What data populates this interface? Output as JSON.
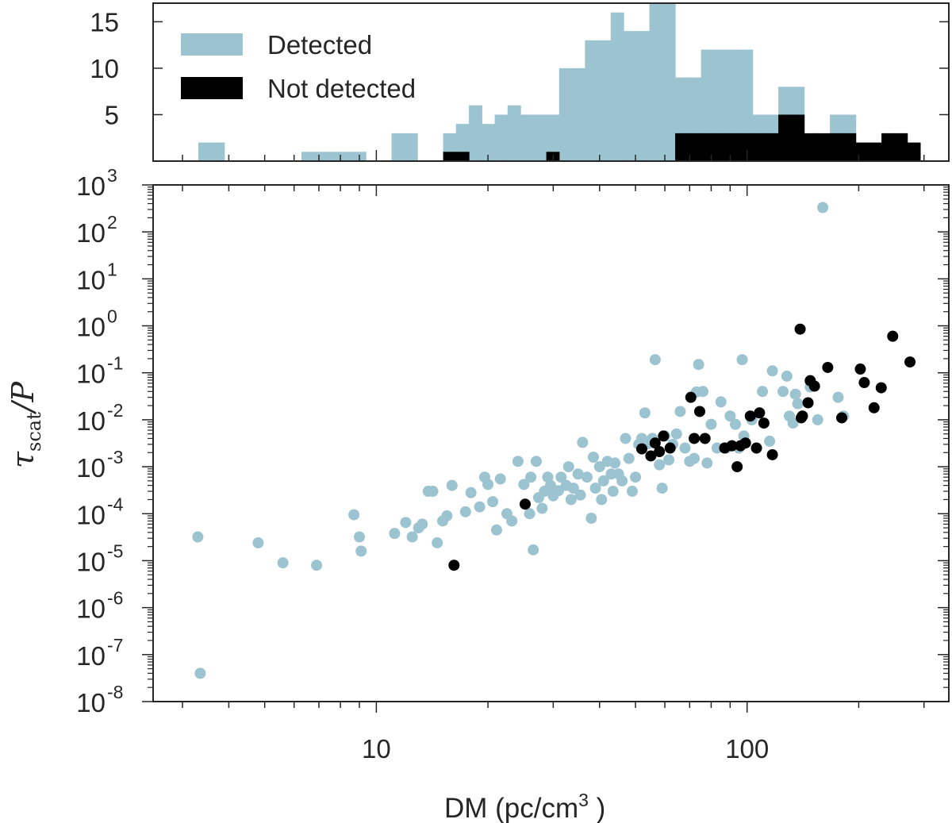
{
  "chart_data": {
    "type": "scatter",
    "colors": {
      "detected": "#9cc3d0",
      "not_detected": "#000000",
      "axis": "#262626"
    },
    "histogram": {
      "type": "bar",
      "ylim": [
        0,
        17
      ],
      "yticks": [
        5,
        10,
        15
      ],
      "ytick_labels": [
        "5",
        "10",
        "15"
      ],
      "legend": {
        "placement": "top-left",
        "entries": [
          {
            "series": "detected",
            "label": "Detected"
          },
          {
            "series": "not_detected",
            "label": "Not detected"
          }
        ]
      },
      "bin_edges": [
        3.06,
        3.31,
        3.59,
        3.89,
        4.21,
        4.56,
        4.94,
        5.35,
        5.8,
        6.28,
        6.8,
        7.37,
        7.98,
        8.65,
        9.37,
        10.15,
        10.99,
        11.91,
        12.9,
        13.98,
        15.14,
        16.4,
        17.77,
        19.25,
        20.86,
        22.59,
        24.48,
        26.52,
        28.73,
        31.12,
        33.72,
        36.53,
        39.57,
        42.87,
        46.45,
        50.32,
        54.51,
        59.06,
        63.98,
        69.32,
        75.1,
        81.36,
        88.14,
        95.49,
        103.45,
        112.07,
        121.42,
        131.54,
        142.5,
        154.38,
        167.25,
        181.19,
        196.3,
        212.66,
        230.39,
        249.6,
        270.4,
        292.95
      ],
      "series": [
        {
          "name": "detected",
          "label": "Detected",
          "counts": [
            0,
            2,
            2,
            0,
            0,
            0,
            0,
            0,
            0,
            1,
            1,
            1,
            1,
            1,
            0,
            0,
            3,
            3,
            0,
            0,
            3,
            4,
            6,
            4,
            5,
            6,
            5,
            5,
            5,
            10,
            10,
            13,
            13,
            16,
            14,
            14,
            17,
            17,
            9,
            9,
            12,
            12,
            12,
            12,
            5,
            5,
            8,
            8,
            0,
            0,
            5,
            5,
            0,
            0,
            3,
            3,
            0
          ]
        },
        {
          "name": "not_detected",
          "label": "Not detected",
          "counts": [
            0,
            0,
            0,
            0,
            0,
            0,
            0,
            0,
            0,
            0,
            0,
            0,
            0,
            0,
            0,
            0,
            0,
            0,
            0,
            0,
            1,
            1,
            0,
            0,
            0,
            0,
            0,
            0,
            1,
            0,
            0,
            0,
            0,
            0,
            0,
            0,
            0,
            0,
            3,
            3,
            3,
            3,
            3,
            3,
            3,
            3,
            5,
            5,
            3,
            3,
            3,
            3,
            2,
            2,
            3,
            3,
            2
          ]
        }
      ]
    },
    "scatter": {
      "type": "scatter",
      "xlabel": "DM (pc/cm",
      "xlabel_sup": "3",
      "xlabel_close": " )",
      "ylabel": "τ",
      "ylabel_sub": "scat",
      "ylabel_rest": "/P",
      "xscale": "log",
      "yscale": "log",
      "xlim": [
        2.5,
        350
      ],
      "ylim": [
        1e-08,
        1000.0
      ],
      "xticks": [
        10,
        100
      ],
      "xtick_labels": [
        "10",
        "100"
      ],
      "yticks_exp": [
        3,
        2,
        1,
        0,
        -1,
        -2,
        -3,
        -4,
        -5,
        -6,
        -7,
        -8
      ],
      "ytick_base": "10",
      "series": [
        {
          "name": "detected",
          "label": "Detected",
          "points": [
            [
              3.3,
              3.2e-05
            ],
            [
              3.35,
              4e-08
            ],
            [
              4.8,
              2.4e-05
            ],
            [
              5.6,
              9e-06
            ],
            [
              6.9,
              8e-06
            ],
            [
              8.7,
              9.5e-05
            ],
            [
              9.0,
              3.2e-05
            ],
            [
              9.1,
              1.6e-05
            ],
            [
              11.2,
              3.8e-05
            ],
            [
              12.0,
              6.5e-05
            ],
            [
              12.5,
              3.2e-05
            ],
            [
              13.0,
              5e-05
            ],
            [
              13.3,
              6e-05
            ],
            [
              13.8,
              0.0003
            ],
            [
              14.2,
              0.0003
            ],
            [
              14.6,
              2.4e-05
            ],
            [
              15.1,
              7e-05
            ],
            [
              15.5,
              9e-05
            ],
            [
              16.0,
              0.0004
            ],
            [
              17.4,
              0.00011
            ],
            [
              18.0,
              0.00028
            ],
            [
              19.0,
              0.00014
            ],
            [
              19.6,
              0.0006
            ],
            [
              20.0,
              0.00042
            ],
            [
              20.6,
              0.00018
            ],
            [
              21.1,
              4.5e-05
            ],
            [
              21.6,
              0.00055
            ],
            [
              22.5,
              0.0001
            ],
            [
              23.2,
              7e-05
            ],
            [
              24.1,
              0.0013
            ],
            [
              25.0,
              0.00042
            ],
            [
              25.9,
              0.0001
            ],
            [
              26.1,
              0.0006
            ],
            [
              26.5,
              1.7e-05
            ],
            [
              27.0,
              0.0013
            ],
            [
              27.4,
              0.00022
            ],
            [
              28.0,
              0.00013
            ],
            [
              28.4,
              0.0003
            ],
            [
              29.0,
              0.0006
            ],
            [
              29.5,
              0.0004
            ],
            [
              30.0,
              0.00024
            ],
            [
              31.0,
              0.00031
            ],
            [
              31.5,
              0.0006
            ],
            [
              32.5,
              0.0004
            ],
            [
              33.0,
              0.001
            ],
            [
              33.5,
              0.0002
            ],
            [
              34.0,
              0.00035
            ],
            [
              35.0,
              0.0007
            ],
            [
              35.5,
              0.00025
            ],
            [
              36.0,
              0.0033
            ],
            [
              37.0,
              0.0006
            ],
            [
              38.0,
              8e-05
            ],
            [
              38.5,
              0.0016
            ],
            [
              39.0,
              0.00035
            ],
            [
              40.0,
              0.001
            ],
            [
              40.5,
              0.0002
            ],
            [
              41.0,
              0.0005
            ],
            [
              42.0,
              0.0013
            ],
            [
              43.0,
              0.0007
            ],
            [
              43.5,
              0.0003
            ],
            [
              44.0,
              0.0012
            ],
            [
              45.0,
              0.0007
            ],
            [
              46.0,
              0.0005
            ],
            [
              47.0,
              0.004
            ],
            [
              48.0,
              0.0015
            ],
            [
              49.0,
              0.0003
            ],
            [
              50.0,
              0.0006
            ],
            [
              51.0,
              0.003
            ],
            [
              52.0,
              0.004
            ],
            [
              53.0,
              0.014
            ],
            [
              54.0,
              0.0031
            ],
            [
              55.5,
              0.004
            ],
            [
              56.5,
              0.19
            ],
            [
              58.0,
              0.0011
            ],
            [
              59.0,
              0.00035
            ],
            [
              60.0,
              0.0045
            ],
            [
              61.5,
              0.0014
            ],
            [
              63.0,
              0.003
            ],
            [
              64.5,
              0.005
            ],
            [
              66.0,
              0.015
            ],
            [
              68.0,
              0.0025
            ],
            [
              70.0,
              0.0013
            ],
            [
              72.0,
              0.0015
            ],
            [
              73.0,
              0.039
            ],
            [
              74.0,
              0.15
            ],
            [
              76.0,
              0.04
            ],
            [
              78.0,
              0.0012
            ],
            [
              80.0,
              0.008
            ],
            [
              83.0,
              0.0025
            ],
            [
              85.0,
              0.024
            ],
            [
              88.0,
              0.0025
            ],
            [
              90.0,
              0.012
            ],
            [
              93.0,
              0.008
            ],
            [
              95.0,
              0.0025
            ],
            [
              97.0,
              0.19
            ],
            [
              98.0,
              0.0045
            ],
            [
              103.0,
              0.01
            ],
            [
              110.0,
              0.04
            ],
            [
              115.0,
              0.0035
            ],
            [
              117.0,
              0.11
            ],
            [
              125.0,
              0.04
            ],
            [
              128.0,
              0.085
            ],
            [
              130.0,
              0.012
            ],
            [
              133.0,
              0.0085
            ],
            [
              135.0,
              0.035
            ],
            [
              137.0,
              0.022
            ],
            [
              148.0,
              0.05
            ],
            [
              155.0,
              0.01
            ],
            [
              160.0,
              330
            ],
            [
              176.0,
              0.03
            ],
            [
              182.0,
              0.012
            ]
          ]
        },
        {
          "name": "not_detected",
          "label": "Not detected",
          "points": [
            [
              16.2,
              8e-06
            ],
            [
              25.2,
              0.00016
            ],
            [
              52.0,
              0.0024
            ],
            [
              55.0,
              0.0017
            ],
            [
              56.5,
              0.0032
            ],
            [
              58.0,
              0.0021
            ],
            [
              59.5,
              0.0045
            ],
            [
              62.0,
              0.0025
            ],
            [
              70.5,
              0.03
            ],
            [
              72.0,
              0.004
            ],
            [
              74.5,
              0.015
            ],
            [
              77.0,
              0.004
            ],
            [
              87.0,
              0.0025
            ],
            [
              91.0,
              0.0028
            ],
            [
              94.0,
              0.001
            ],
            [
              96.0,
              0.0028
            ],
            [
              99.0,
              0.0032
            ],
            [
              102.0,
              0.012
            ],
            [
              106.0,
              0.0025
            ],
            [
              108.0,
              0.014
            ],
            [
              111.0,
              0.0085
            ],
            [
              117.0,
              0.0018
            ],
            [
              139.0,
              0.85
            ],
            [
              140.0,
              0.011
            ],
            [
              141.0,
              0.012
            ],
            [
              146.0,
              0.023
            ],
            [
              148.0,
              0.068
            ],
            [
              152.0,
              0.052
            ],
            [
              165.0,
              0.13
            ],
            [
              180.0,
              0.011
            ],
            [
              202.0,
              0.12
            ],
            [
              207.0,
              0.062
            ],
            [
              220.0,
              0.018
            ],
            [
              230.0,
              0.048
            ],
            [
              247.0,
              0.6
            ],
            [
              275.0,
              0.17
            ]
          ]
        }
      ]
    }
  }
}
